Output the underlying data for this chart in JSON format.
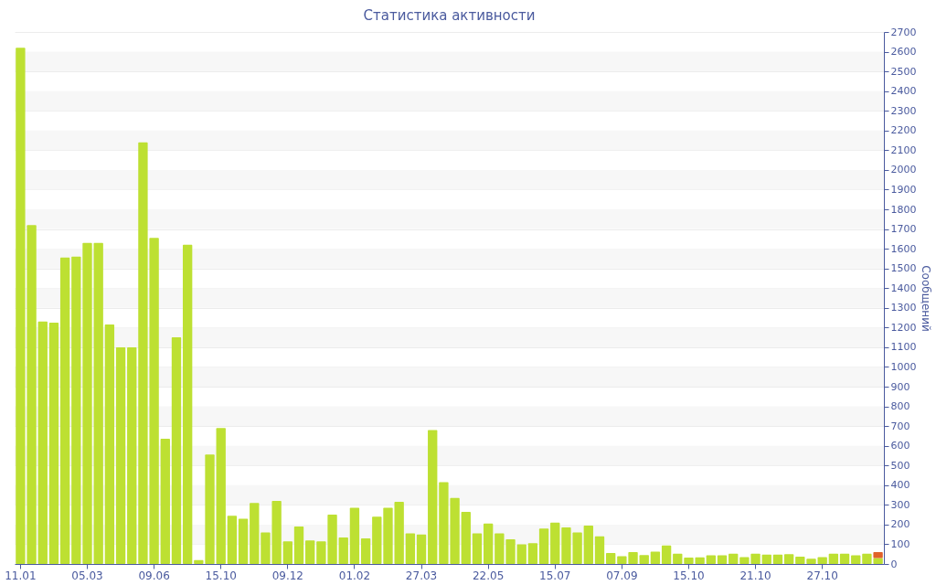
{
  "chart_data": {
    "type": "bar",
    "title": "Статистика активности",
    "y2label": "Сообщений",
    "stacked": true,
    "grid": "y",
    "categories": [
      "11.01",
      null,
      null,
      null,
      null,
      null,
      "05.03",
      null,
      null,
      null,
      null,
      null,
      "09.06",
      null,
      null,
      null,
      null,
      null,
      "15.10",
      null,
      null,
      null,
      null,
      null,
      "09.12",
      null,
      null,
      null,
      null,
      null,
      "01.02",
      null,
      null,
      null,
      null,
      null,
      "27.03",
      null,
      null,
      null,
      null,
      null,
      "22.05",
      null,
      null,
      null,
      null,
      null,
      "15.07",
      null,
      null,
      null,
      null,
      null,
      "07.09",
      null,
      null,
      null,
      null,
      null,
      "15.10",
      null,
      null,
      null,
      null,
      null,
      "21.10",
      null,
      null,
      null,
      null,
      null,
      "27.10",
      null,
      null,
      null,
      null,
      null
    ],
    "series": [
      {
        "color": "#bde032",
        "axis": "y2",
        "values": [
          2620,
          1720,
          1230,
          1225,
          1555,
          1560,
          1630,
          1630,
          1215,
          1100,
          1100,
          2140,
          1655,
          635,
          1150,
          1620,
          20,
          555,
          690,
          245,
          230,
          310,
          160,
          320,
          115,
          190,
          120,
          115,
          250,
          135,
          285,
          130,
          240,
          285,
          315,
          155,
          150,
          680,
          415,
          335,
          265,
          155,
          205,
          155,
          125,
          100,
          105,
          180,
          210,
          185,
          160,
          195,
          140,
          56,
          39,
          60,
          45,
          63,
          94,
          52,
          32,
          34,
          44,
          44,
          52,
          35,
          52,
          48,
          47,
          50,
          37,
          27,
          35,
          52,
          52,
          44,
          52,
          30
        ]
      },
      {
        "color": "#e0622a",
        "axis": "y2",
        "values": [
          null,
          null,
          null,
          null,
          null,
          null,
          null,
          null,
          null,
          null,
          null,
          null,
          null,
          null,
          null,
          null,
          null,
          null,
          null,
          null,
          null,
          null,
          null,
          null,
          null,
          null,
          null,
          null,
          null,
          null,
          null,
          null,
          null,
          null,
          null,
          null,
          null,
          null,
          null,
          null,
          null,
          null,
          null,
          null,
          null,
          null,
          null,
          null,
          null,
          null,
          null,
          null,
          null,
          null,
          null,
          null,
          null,
          null,
          null,
          null,
          null,
          null,
          null,
          null,
          null,
          null,
          null,
          null,
          null,
          null,
          null,
          null,
          null,
          null,
          null,
          null,
          null,
          30
        ]
      }
    ],
    "y2lim": [
      0,
      2700
    ],
    "y2ticks": [
      0,
      100,
      200,
      300,
      400,
      500,
      600,
      700,
      800,
      900,
      1000,
      1100,
      1200,
      1300,
      1400,
      1500,
      1600,
      1700,
      1800,
      1900,
      2000,
      2100,
      2200,
      2300,
      2400,
      2500,
      2600,
      2700
    ]
  }
}
